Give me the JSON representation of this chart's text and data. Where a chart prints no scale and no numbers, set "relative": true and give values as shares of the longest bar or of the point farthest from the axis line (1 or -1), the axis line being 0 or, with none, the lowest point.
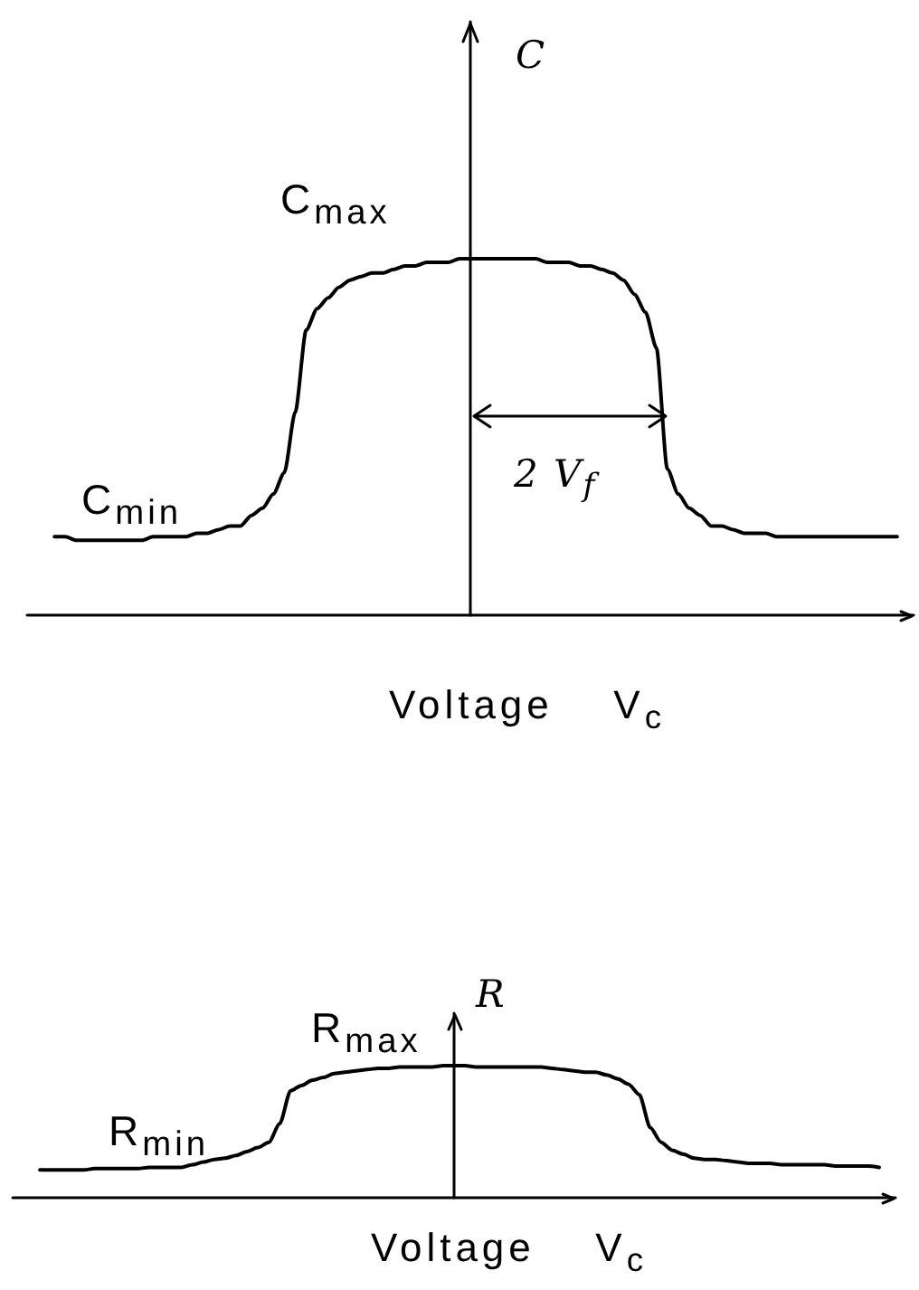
{
  "chart_data": [
    {
      "type": "line",
      "relative": true,
      "ylabel": "C",
      "xlabel": "Voltage  V$_{c}$",
      "annotations": [
        "C$_{max}$",
        "C$_{min}$",
        "2 V$_{f}$"
      ],
      "color": "#000000",
      "marker": "none",
      "categories": [
        null,
        null,
        null,
        null,
        null,
        null,
        null,
        null,
        null,
        null,
        null,
        null,
        null,
        null,
        null,
        null,
        null,
        null,
        null,
        null,
        null,
        null,
        null,
        null,
        null,
        null,
        null,
        null,
        null,
        null,
        null,
        null,
        null,
        null,
        null,
        null,
        null,
        null,
        null,
        null,
        null,
        null,
        null,
        null,
        null,
        null,
        null,
        null,
        null,
        null,
        null,
        null,
        null,
        null,
        null,
        null,
        null,
        null,
        null,
        null,
        null,
        null,
        null,
        null,
        null,
        null,
        null,
        null,
        null,
        null,
        null,
        null,
        null,
        null,
        null,
        null,
        null,
        null,
        null,
        null,
        null
      ],
      "values": [
        null,
        null,
        0.22,
        0.22,
        0.21,
        0.21,
        0.21,
        0.21,
        0.21,
        0.21,
        0.21,
        0.22,
        0.22,
        0.22,
        0.22,
        0.23,
        0.23,
        0.24,
        0.25,
        0.25,
        0.28,
        0.3,
        0.34,
        0.4,
        0.57,
        0.8,
        0.86,
        0.89,
        0.92,
        0.94,
        0.95,
        0.96,
        0.96,
        0.97,
        0.98,
        0.98,
        0.99,
        0.99,
        0.99,
        1,
        1,
        1,
        1,
        1,
        1,
        1,
        1,
        0.99,
        0.99,
        0.99,
        0.98,
        0.98,
        0.97,
        0.96,
        0.94,
        0.9,
        0.85,
        0.75,
        0.41,
        0.34,
        0.3,
        0.28,
        0.25,
        0.25,
        0.24,
        0.23,
        0.23,
        0.23,
        0.22,
        0.22,
        0.22,
        0.22,
        0.22,
        0.22,
        0.22,
        0.22,
        0.22,
        0.22,
        0.22,
        0.22,
        null
      ]
    },
    {
      "type": "line",
      "relative": true,
      "ylabel": "R",
      "xlabel": "Voltage  V$_{c}$",
      "annotations": [
        "R$_{max}$",
        "R$_{min}$"
      ],
      "color": "#000000",
      "marker": "none",
      "categories": [
        null,
        null,
        null,
        null,
        null,
        null,
        null,
        null,
        null,
        null,
        null,
        null,
        null,
        null,
        null,
        null,
        null,
        null,
        null,
        null,
        null,
        null,
        null,
        null,
        null,
        null,
        null,
        null,
        null,
        null,
        null,
        null,
        null,
        null,
        null,
        null,
        null,
        null,
        null,
        null,
        null,
        null,
        null,
        null,
        null,
        null,
        null,
        null,
        null,
        null,
        null,
        null,
        null,
        null,
        null,
        null,
        null,
        null,
        null,
        null,
        null,
        null,
        null,
        null,
        null,
        null,
        null,
        null,
        null,
        null,
        null,
        null,
        null,
        null,
        null,
        null,
        null,
        null,
        null,
        null,
        null
      ],
      "values": [
        null,
        null,
        0.21,
        0.21,
        0.21,
        0.21,
        0.21,
        0.22,
        0.22,
        0.22,
        0.22,
        0.22,
        0.23,
        0.23,
        0.23,
        0.23,
        0.25,
        0.27,
        0.29,
        0.3,
        0.32,
        0.35,
        0.38,
        0.42,
        0.56,
        0.81,
        0.85,
        0.89,
        0.91,
        0.94,
        0.95,
        0.96,
        0.97,
        0.98,
        0.98,
        0.99,
        0.99,
        0.99,
        0.99,
        1,
        1,
        1,
        0.99,
        0.99,
        0.99,
        0.99,
        0.99,
        0.99,
        0.99,
        0.98,
        0.97,
        0.96,
        0.95,
        0.95,
        0.93,
        0.9,
        0.86,
        0.78,
        0.53,
        0.42,
        0.36,
        0.33,
        0.3,
        0.29,
        0.29,
        0.28,
        0.27,
        0.26,
        0.26,
        0.26,
        0.25,
        0.25,
        0.25,
        0.25,
        0.25,
        0.24,
        0.24,
        0.24,
        0.24,
        0.23,
        null
      ]
    }
  ]
}
